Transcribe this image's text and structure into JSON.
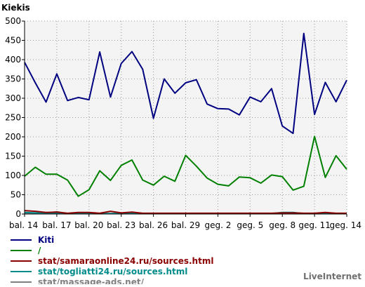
{
  "chart_data": {
    "type": "line",
    "title": "Kiekis",
    "credit": "LiveInternet",
    "ylim": [
      0,
      500
    ],
    "y_ticks": [
      0,
      50,
      100,
      150,
      200,
      250,
      300,
      350,
      400,
      450,
      500
    ],
    "grid": true,
    "legend_position": "bottom-left",
    "x_tick_labels": [
      "bal. 14",
      "bal. 17",
      "bal. 20",
      "bal. 23",
      "bal. 26",
      "bal. 29",
      "geg. 2",
      "geg. 5",
      "geg. 8",
      "geg. 11",
      "geg. 14"
    ],
    "x_tick_positions": [
      0,
      3,
      6,
      9,
      12,
      15,
      18,
      21,
      24,
      27,
      30
    ],
    "x_count": 31,
    "series": [
      {
        "name": "Kiti",
        "color": "#000080",
        "values": [
          393,
          340,
          290,
          363,
          294,
          302,
          296,
          420,
          303,
          390,
          421,
          375,
          248,
          350,
          313,
          340,
          348,
          285,
          273,
          272,
          257,
          303,
          291,
          325,
          228,
          209,
          468,
          258,
          341,
          291,
          347
        ]
      },
      {
        "name": "/",
        "color": "#008000",
        "values": [
          98,
          121,
          103,
          103,
          88,
          46,
          63,
          112,
          87,
          126,
          140,
          88,
          75,
          98,
          85,
          152,
          124,
          93,
          77,
          73,
          96,
          94,
          80,
          101,
          97,
          62,
          72,
          201,
          95,
          151,
          116
        ]
      },
      {
        "name": "stat/samaraonline24.ru/sources.html",
        "color": "#8b0000",
        "values": [
          9,
          7,
          4,
          5,
          2,
          4,
          4,
          2,
          7,
          3,
          5,
          2,
          2,
          2,
          2,
          2,
          2,
          2,
          2,
          2,
          2,
          2,
          2,
          2,
          3,
          3,
          2,
          2,
          4,
          2,
          2
        ]
      },
      {
        "name": "stat/togliatti24.ru/sources.html",
        "color": "#008b8b",
        "values": [
          4,
          3,
          2,
          3,
          1,
          1,
          1,
          1,
          1,
          2,
          2,
          1,
          1,
          1,
          1,
          1,
          1,
          1,
          1,
          1,
          1,
          1,
          1,
          1,
          4,
          4,
          1,
          1,
          1,
          1,
          1
        ]
      },
      {
        "name": "stat/massage-ads.net/",
        "color": "#808080",
        "values": [
          2,
          2,
          2,
          6,
          1,
          1,
          1,
          1,
          1,
          1,
          1,
          1,
          1,
          1,
          1,
          1,
          1,
          1,
          1,
          1,
          1,
          1,
          1,
          1,
          1,
          1,
          1,
          1,
          1,
          1,
          1
        ]
      }
    ]
  }
}
